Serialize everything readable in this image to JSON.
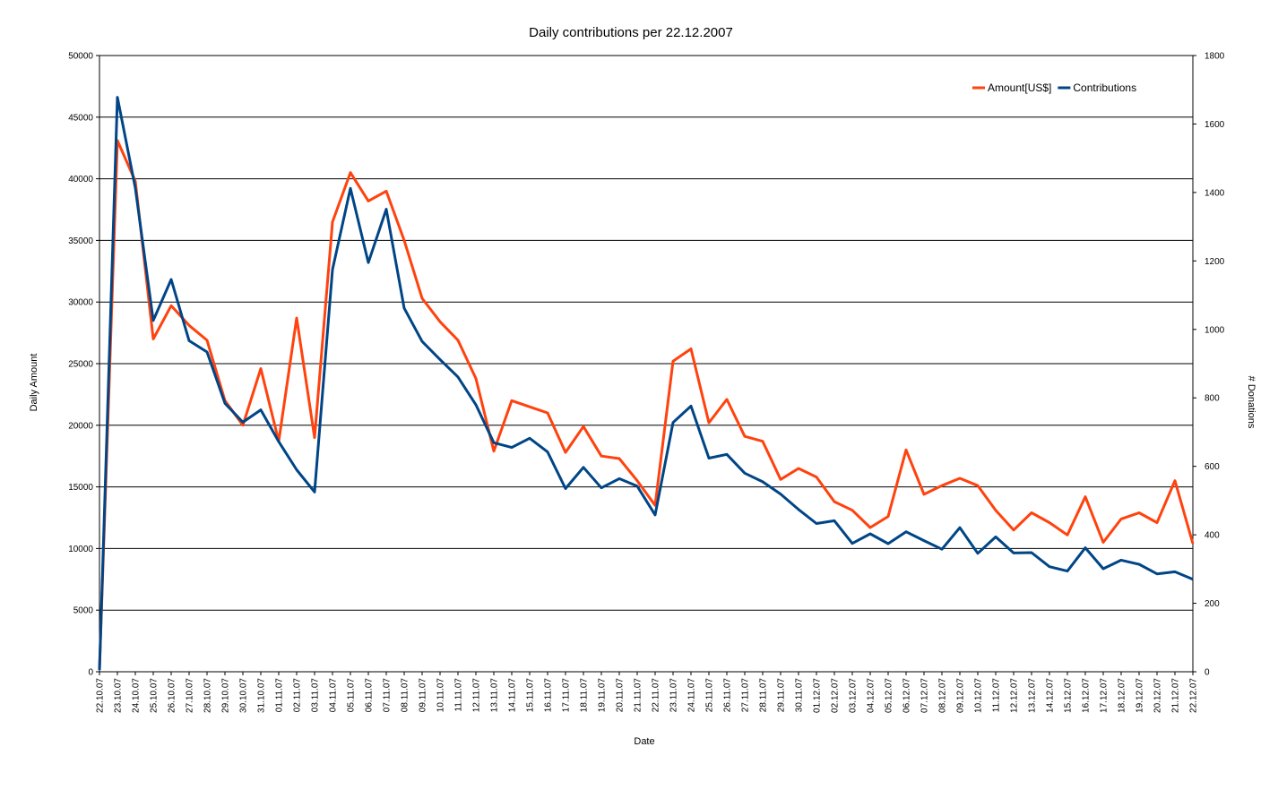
{
  "chart_data": {
    "type": "line",
    "title": "Daily contributions per 22.12.2007",
    "xlabel": "Date",
    "ylabel": "Daily Amount",
    "y2label": "# Donations",
    "ylim": [
      0,
      50000
    ],
    "y2lim": [
      0,
      1800
    ],
    "yticks": [
      "0",
      "5000",
      "10000",
      "15000",
      "20000",
      "25000",
      "30000",
      "35000",
      "40000",
      "45000",
      "50000"
    ],
    "y2ticks": [
      "0",
      "200",
      "400",
      "600",
      "800",
      "1000",
      "1200",
      "1400",
      "1600",
      "1800"
    ],
    "grid": true,
    "legend_position": "top-right",
    "categories": [
      "22.10.07",
      "23.10.07",
      "24.10.07",
      "25.10.07",
      "26.10.07",
      "27.10.07",
      "28.10.07",
      "29.10.07",
      "30.10.07",
      "31.10.07",
      "01.11.07",
      "02.11.07",
      "03.11.07",
      "04.11.07",
      "05.11.07",
      "06.11.07",
      "07.11.07",
      "08.11.07",
      "09.11.07",
      "10.11.07",
      "11.11.07",
      "12.11.07",
      "13.11.07",
      "14.11.07",
      "15.11.07",
      "16.11.07",
      "17.11.07",
      "18.11.07",
      "19.11.07",
      "20.11.07",
      "21.11.07",
      "22.11.07",
      "23.11.07",
      "24.11.07",
      "25.11.07",
      "26.11.07",
      "27.11.07",
      "28.11.07",
      "29.11.07",
      "30.11.07",
      "01.12.07",
      "02.12.07",
      "03.12.07",
      "04.12.07",
      "05.12.07",
      "06.12.07",
      "07.12.07",
      "08.12.07",
      "09.12.07",
      "10.12.07",
      "11.12.07",
      "12.12.07",
      "13.12.07",
      "14.12.07",
      "15.12.07",
      "16.12.07",
      "17.12.07",
      "18.12.07",
      "19.12.07",
      "20.12.07",
      "21.12.07",
      "22.12.07"
    ],
    "series": [
      {
        "name": "Amount[US$]",
        "axis": "left",
        "color": "#ff420e",
        "values": [
          200,
          43100,
          39800,
          27000,
          29700,
          28100,
          26900,
          22000,
          20000,
          24600,
          18700,
          28700,
          19000,
          36500,
          40500,
          38200,
          39000,
          35000,
          30300,
          28400,
          26900,
          23800,
          17900,
          22000,
          21500,
          21000,
          17800,
          19900,
          17500,
          17300,
          15500,
          13500,
          25200,
          26200,
          20200,
          22100,
          19100,
          18700,
          15600,
          16500,
          15800,
          13800,
          13100,
          11700,
          12600,
          18000,
          14400,
          15100,
          15700,
          15100,
          13100,
          11500,
          12900,
          12100,
          11100,
          14200,
          10500,
          12400,
          12900,
          12100,
          15500,
          10400
        ]
      },
      {
        "name": "Contributions",
        "axis": "right",
        "color": "#004586",
        "values": [
          5,
          1678,
          1413,
          1026,
          1146,
          967,
          934,
          784,
          729,
          765,
          672,
          590,
          525,
          1175,
          1412,
          1195,
          1351,
          1062,
          965,
          912,
          861,
          780,
          669,
          655,
          682,
          642,
          535,
          597,
          537,
          564,
          542,
          458,
          728,
          776,
          624,
          635,
          580,
          555,
          519,
          474,
          433,
          441,
          375,
          403,
          374,
          409,
          383,
          358,
          421,
          346,
          394,
          347,
          348,
          307,
          294,
          362,
          301,
          326,
          314,
          286,
          292,
          270
        ]
      }
    ]
  }
}
